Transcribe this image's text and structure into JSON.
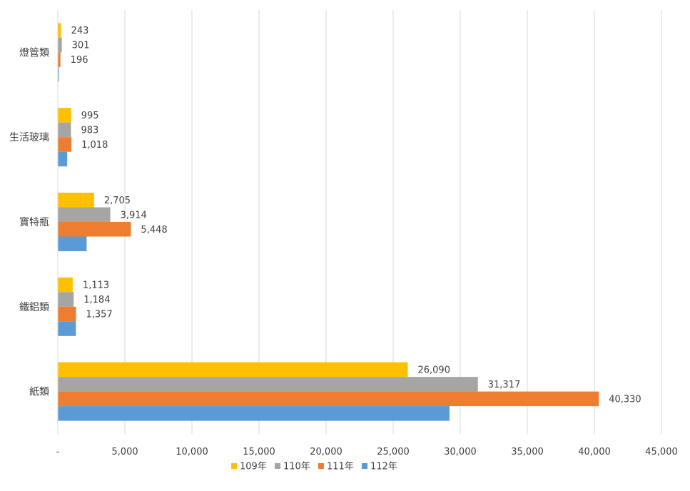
{
  "chart_data": {
    "type": "bar",
    "orientation": "horizontal",
    "categories": [
      "燈管類",
      "生活玻璃",
      "寶特瓶",
      "鐵鋁類",
      "紙類"
    ],
    "series": [
      {
        "name": "109年",
        "color": "#FFC000",
        "values": [
          243,
          995,
          2705,
          1113,
          26090
        ],
        "labels": [
          "243",
          "995",
          "2,705",
          "1,113",
          "26,090"
        ]
      },
      {
        "name": "110年",
        "color": "#A5A5A5",
        "values": [
          301,
          983,
          3914,
          1184,
          31317
        ],
        "labels": [
          "301",
          "983",
          "3,914",
          "1,184",
          "31,317"
        ]
      },
      {
        "name": "111年",
        "color": "#ED7D31",
        "values": [
          196,
          1018,
          5448,
          1357,
          40330
        ],
        "labels": [
          "196",
          "1,018",
          "5,448",
          "1,357",
          "40,330"
        ]
      },
      {
        "name": "112年",
        "color": "#5B9BD5",
        "values": [
          80,
          700,
          2150,
          1350,
          29200
        ],
        "labels": [
          "",
          "",
          "",
          "",
          ""
        ]
      }
    ],
    "xlim": [
      0,
      45000
    ],
    "x_ticks": [
      0,
      5000,
      10000,
      15000,
      20000,
      25000,
      30000,
      35000,
      40000,
      45000
    ],
    "x_tick_labels": [
      "-",
      "5,000",
      "10,000",
      "15,000",
      "20,000",
      "25,000",
      "30,000",
      "35,000",
      "40,000",
      "45,000"
    ],
    "grid": "vertical",
    "legend_position": "bottom"
  }
}
